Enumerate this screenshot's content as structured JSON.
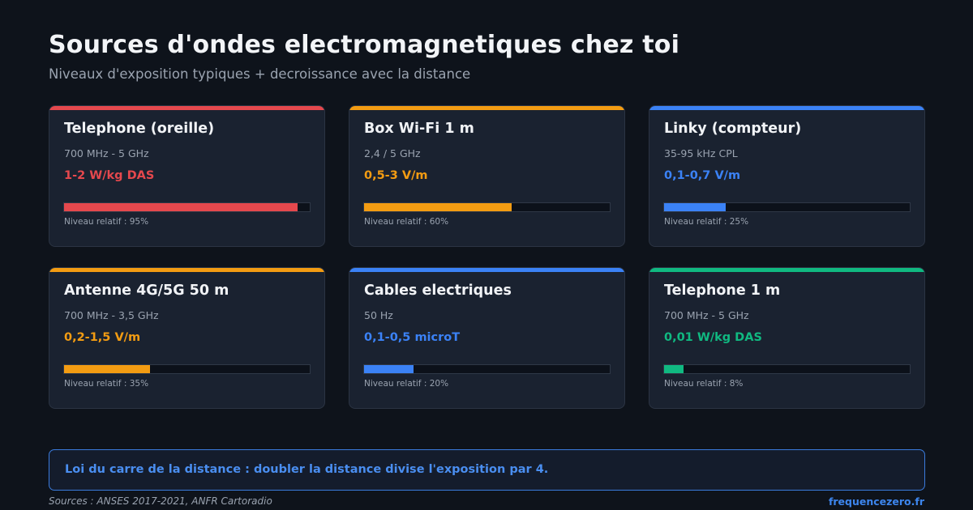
{
  "header": {
    "title": "Sources d'ondes electromagnetiques chez toi",
    "subtitle": "Niveaux d'exposition typiques + decroissance avec la distance"
  },
  "cards": [
    {
      "name": "Telephone (oreille)",
      "frequency": "700 MHz - 5 GHz",
      "value": "1-2 W/kg DAS",
      "level_label": "Niveau relatif : 95%",
      "level": 0.95,
      "color": "#e5484d"
    },
    {
      "name": "Box Wi-Fi 1 m",
      "frequency": "2,4 / 5 GHz",
      "value": "0,5-3 V/m",
      "level_label": "Niveau relatif : 60%",
      "level": 0.6,
      "color": "#f39c12"
    },
    {
      "name": "Linky (compteur)",
      "frequency": "35-95 kHz CPL",
      "value": "0,1-0,7 V/m",
      "level_label": "Niveau relatif : 25%",
      "level": 0.25,
      "color": "#3b82f6"
    },
    {
      "name": "Antenne 4G/5G 50 m",
      "frequency": "700 MHz - 3,5 GHz",
      "value": "0,2-1,5 V/m",
      "level_label": "Niveau relatif : 35%",
      "level": 0.35,
      "color": "#f39c12"
    },
    {
      "name": "Cables electriques",
      "frequency": "50 Hz",
      "value": "0,1-0,5 microT",
      "level_label": "Niveau relatif : 20%",
      "level": 0.2,
      "color": "#3b82f6"
    },
    {
      "name": "Telephone 1 m",
      "frequency": "700 MHz - 5 GHz",
      "value": "0,01 W/kg DAS",
      "level_label": "Niveau relatif : 8%",
      "level": 0.08,
      "color": "#10b981"
    }
  ],
  "law": {
    "text": "Loi du carre de la distance : doubler la distance divise l'exposition par 4."
  },
  "footer": {
    "sources": "Sources : ANSES 2017-2021, ANFR Cartoradio",
    "brand": "frequencezero.fr"
  }
}
